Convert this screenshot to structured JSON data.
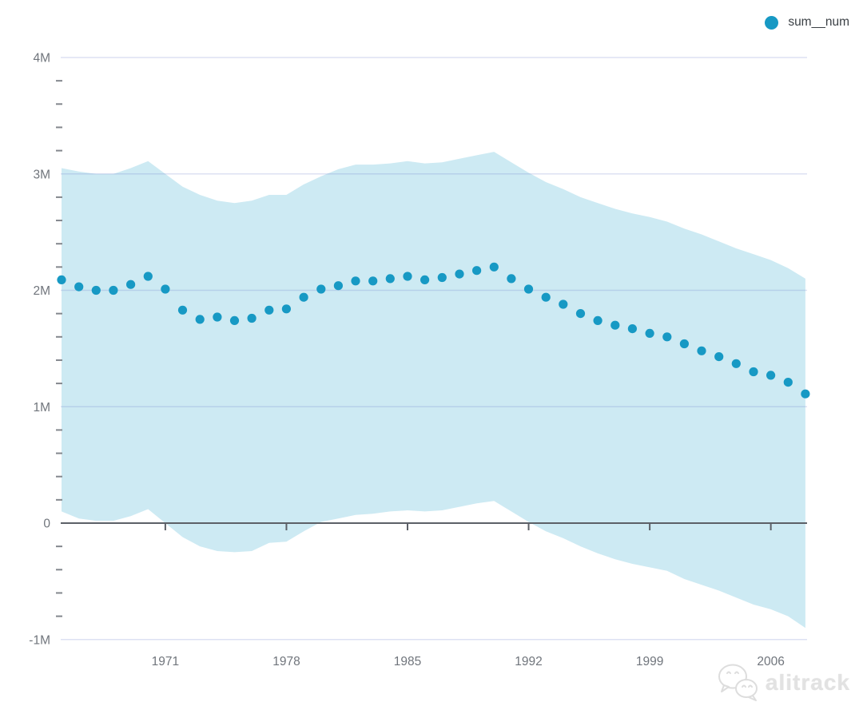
{
  "legend": {
    "series": [
      {
        "label": "sum__num",
        "color": "#1799c4"
      }
    ]
  },
  "watermark": {
    "text": "alitrack",
    "logo": "chat-bubbles-icon"
  },
  "colors": {
    "point": "#1799c4",
    "band": "#cdeaf3",
    "gridline": "#dce1f0",
    "axis": "#5c6067",
    "tick_text": "#70757c"
  },
  "chart_data": {
    "type": "scatter",
    "title": "",
    "xlabel": "",
    "ylabel": "",
    "unit": "millions",
    "legend_position": "top-right",
    "grid": true,
    "ylim_m": [
      -1,
      4
    ],
    "x_years": [
      1965,
      1966,
      1967,
      1968,
      1969,
      1970,
      1971,
      1972,
      1973,
      1974,
      1975,
      1976,
      1977,
      1978,
      1979,
      1980,
      1981,
      1982,
      1983,
      1984,
      1985,
      1986,
      1987,
      1988,
      1989,
      1990,
      1991,
      1992,
      1993,
      1994,
      1995,
      1996,
      1997,
      1998,
      1999,
      2000,
      2001,
      2002,
      2003,
      2004,
      2005,
      2006,
      2007,
      2008
    ],
    "series": [
      {
        "name": "sum__num",
        "color": "#1799c4",
        "values_m": [
          2.09,
          2.03,
          2.0,
          2.0,
          2.05,
          2.12,
          2.01,
          1.83,
          1.75,
          1.77,
          1.74,
          1.76,
          1.83,
          1.84,
          1.94,
          2.01,
          2.04,
          2.08,
          2.08,
          2.1,
          2.12,
          2.09,
          2.11,
          2.14,
          2.17,
          2.2,
          2.1,
          2.01,
          1.94,
          1.88,
          1.8,
          1.74,
          1.7,
          1.67,
          1.63,
          1.6,
          1.54,
          1.48,
          1.43,
          1.37,
          1.3,
          1.27,
          1.21,
          1.11
        ]
      }
    ],
    "band": {
      "name": "confidence-band",
      "color": "#cdeaf3",
      "upper_m": [
        3.05,
        3.02,
        3.0,
        3.0,
        3.05,
        3.11,
        3.0,
        2.89,
        2.82,
        2.77,
        2.75,
        2.77,
        2.82,
        2.82,
        2.91,
        2.98,
        3.04,
        3.08,
        3.08,
        3.09,
        3.11,
        3.09,
        3.1,
        3.13,
        3.16,
        3.19,
        3.1,
        3.01,
        2.93,
        2.87,
        2.8,
        2.75,
        2.7,
        2.66,
        2.63,
        2.59,
        2.53,
        2.48,
        2.42,
        2.36,
        2.31,
        2.26,
        2.19,
        2.1
      ],
      "lower_m": [
        0.1,
        0.04,
        0.02,
        0.02,
        0.06,
        0.12,
        0.0,
        -0.12,
        -0.2,
        -0.24,
        -0.25,
        -0.24,
        -0.17,
        -0.16,
        -0.07,
        0.01,
        0.04,
        0.07,
        0.08,
        0.1,
        0.11,
        0.1,
        0.11,
        0.14,
        0.17,
        0.19,
        0.1,
        0.01,
        -0.07,
        -0.13,
        -0.2,
        -0.26,
        -0.31,
        -0.35,
        -0.38,
        -0.41,
        -0.48,
        -0.53,
        -0.58,
        -0.64,
        -0.7,
        -0.74,
        -0.8,
        -0.9
      ]
    },
    "yticks": [
      {
        "value_m": 4,
        "label": "4M"
      },
      {
        "value_m": 3,
        "label": "3M"
      },
      {
        "value_m": 2,
        "label": "2M"
      },
      {
        "value_m": 1,
        "label": "1M"
      },
      {
        "value_m": 0,
        "label": "0"
      },
      {
        "value_m": -1,
        "label": "-1M"
      }
    ],
    "y_minor_tick_step_m": 0.2,
    "xticks": [
      {
        "year": 1971,
        "label": "1971"
      },
      {
        "year": 1978,
        "label": "1978"
      },
      {
        "year": 1985,
        "label": "1985"
      },
      {
        "year": 1992,
        "label": "1992"
      },
      {
        "year": 1999,
        "label": "1999"
      },
      {
        "year": 2006,
        "label": "2006"
      }
    ]
  }
}
